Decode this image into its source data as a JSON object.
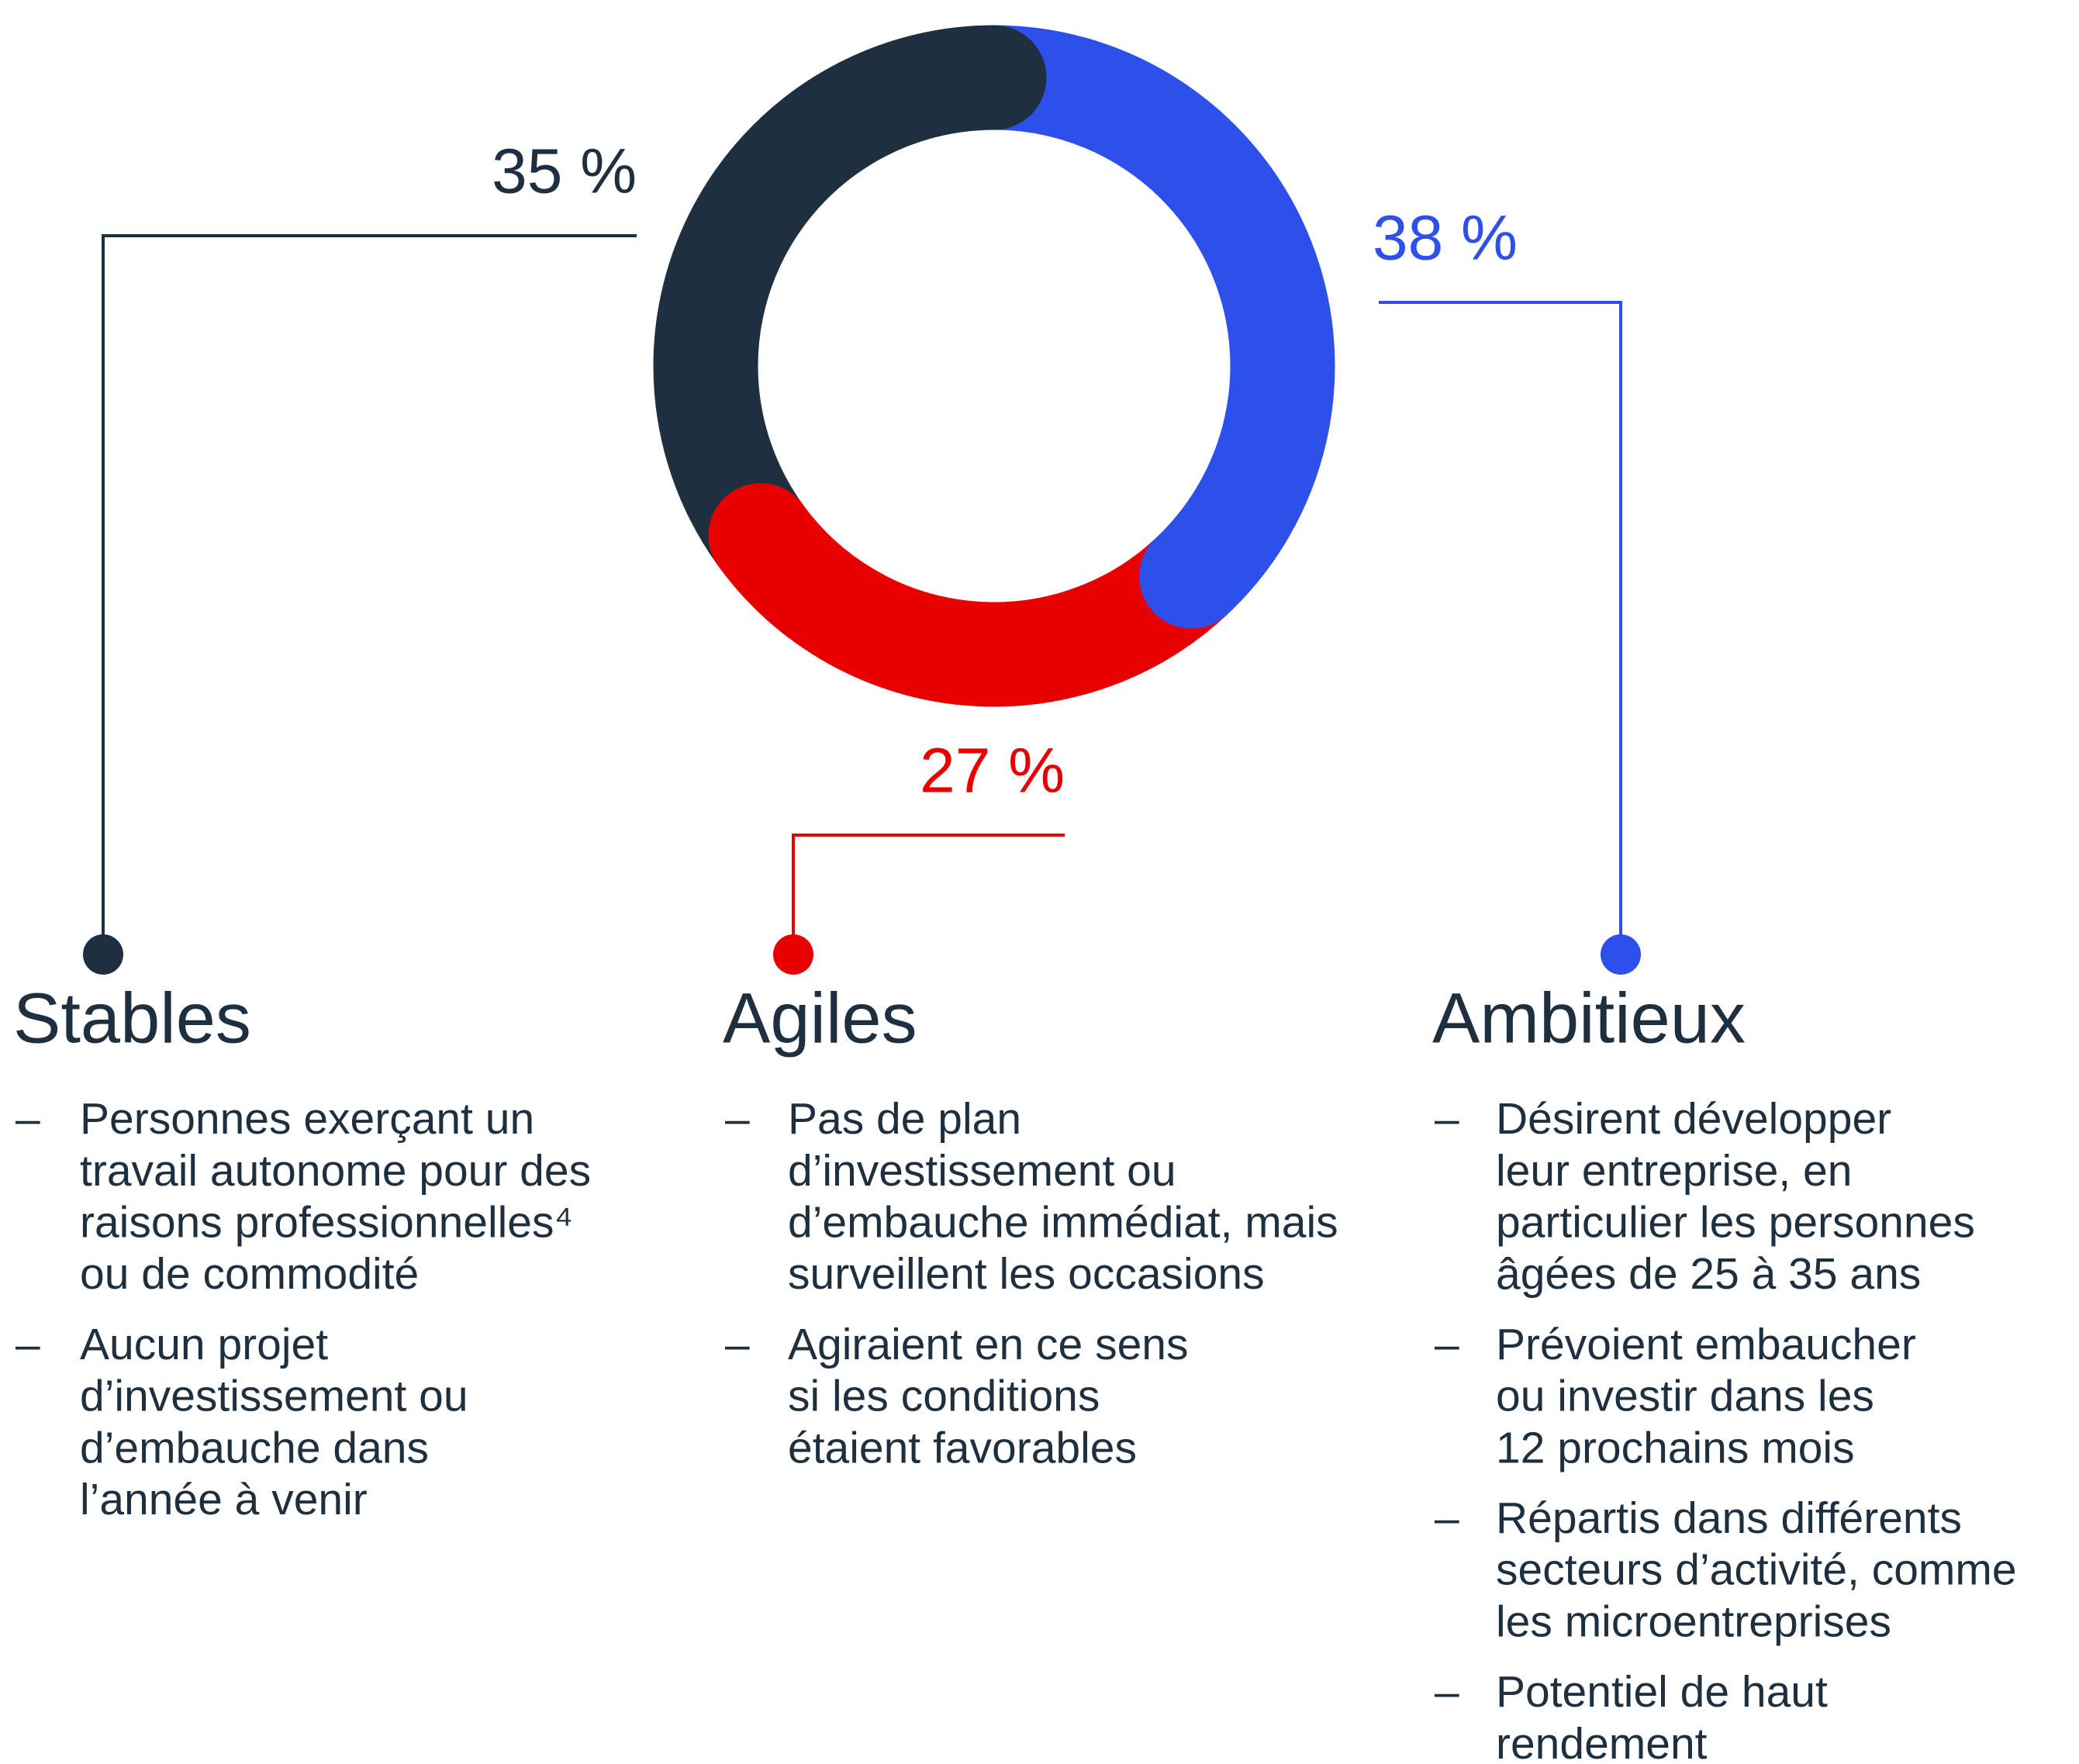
{
  "chart_data": {
    "type": "donut",
    "categories": [
      "Ambitieux",
      "Agiles",
      "Stables"
    ],
    "values": [
      38,
      27,
      35
    ],
    "value_labels": [
      "38 %",
      "27 %",
      "35 %"
    ],
    "colors": [
      "#2d50eb",
      "#e80000",
      "#1e3040"
    ],
    "descriptions": [
      [
        [
          "Désirent développer",
          "leur entreprise, en",
          "particulier les personnes",
          "âgées de 25 à 35 ans"
        ],
        [
          "Prévoient embaucher",
          "ou investir dans les",
          "12 prochains mois"
        ],
        [
          "Répartis dans différents",
          "secteurs d’activité, comme",
          "les microentreprises"
        ],
        [
          "Potentiel de haut",
          "rendement"
        ]
      ],
      [
        [
          "Pas de plan",
          "d’investissement ou",
          "d’embauche immédiat, mais",
          "surveillent les occasions"
        ],
        [
          "Agiraient en ce sens",
          "si les conditions",
          "étaient favorables"
        ]
      ],
      [
        [
          "Personnes exerçant un",
          "travail autonome pour des",
          "raisons professionnelles⁴",
          "ou de commodité"
        ],
        [
          "Aucun projet",
          "d’investissement ou",
          "d’embauche dans",
          "l’année à venir"
        ]
      ]
    ],
    "bullet": "–"
  }
}
